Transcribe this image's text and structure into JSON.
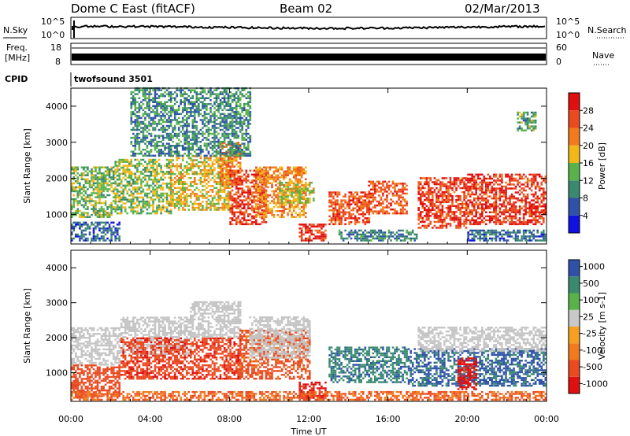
{
  "header": {
    "radar": "Dome C East (fitACF)",
    "beam": "Beam 02",
    "date": "02/Mar/2013",
    "cpid_label": "CPID",
    "cpid_value": "twofsound 3501"
  },
  "strips": {
    "nsky_label": "N.Sky",
    "nsearch_label": "N.Search",
    "nsky_ticks": [
      "10^5",
      "10^0"
    ],
    "nsearch_ticks": [
      "10^5",
      "10^0"
    ],
    "freq_label_1": "Freq.",
    "freq_label_2": "[MHz]",
    "freq_ticks": [
      "18",
      "8"
    ],
    "nave_label": "Nave",
    "nave_ticks": [
      "60",
      "0"
    ]
  },
  "colors": {
    "power": [
      "#1010e0",
      "#2f52a8",
      "#3a8a70",
      "#59b34a",
      "#f2b81a",
      "#f07a1e",
      "#ea4a20",
      "#e01010"
    ],
    "velocity": [
      "#e01010",
      "#ea4a20",
      "#f07a1e",
      "#f5a020",
      "#c8c8c8",
      "#59b34a",
      "#3a8a70",
      "#2f52a8"
    ],
    "ground_scatter": "#c4c4c4"
  },
  "chart_data": [
    {
      "type": "heatmap",
      "panel": "power",
      "ylabel": "Slant Range [km]",
      "xlabel": "",
      "x_ticks": [
        "00:00",
        "04:00",
        "08:00",
        "12:00",
        "16:00",
        "20:00",
        "00:00"
      ],
      "x_range_hours": [
        0,
        24
      ],
      "y_ticks": [
        1000,
        2000,
        3000,
        4000
      ],
      "ylim": [
        180,
        4500
      ],
      "colorbar_label": "Power [dB]",
      "colorbar_ticks": [
        "4",
        "8",
        "12",
        "16",
        "20",
        "24",
        "28"
      ],
      "colorbar_range": [
        0,
        32
      ],
      "scatter_regions": [
        {
          "t0": 0.0,
          "t1": 2.2,
          "r0": 900,
          "r1": 2300,
          "v": 14
        },
        {
          "t0": 0.0,
          "t1": 2.5,
          "r0": 250,
          "r1": 800,
          "v": 7
        },
        {
          "t0": 2.2,
          "t1": 5.0,
          "r0": 1000,
          "r1": 2500,
          "v": 15
        },
        {
          "t0": 5.0,
          "t1": 8.0,
          "r0": 1100,
          "r1": 2600,
          "v": 18
        },
        {
          "t0": 7.5,
          "t1": 8.5,
          "r0": 1800,
          "r1": 3000,
          "v": 22
        },
        {
          "t0": 8.0,
          "t1": 9.8,
          "r0": 700,
          "r1": 2200,
          "v": 27
        },
        {
          "t0": 9.3,
          "t1": 11.8,
          "r0": 900,
          "r1": 2300,
          "v": 21
        },
        {
          "t0": 10.5,
          "t1": 12.2,
          "r0": 1300,
          "r1": 1900,
          "v": 17
        },
        {
          "t0": 11.5,
          "t1": 12.8,
          "r0": 250,
          "r1": 700,
          "v": 28
        },
        {
          "t0": 13.0,
          "t1": 15.0,
          "r0": 700,
          "r1": 1600,
          "v": 26
        },
        {
          "t0": 15.0,
          "t1": 17.0,
          "r0": 1000,
          "r1": 1900,
          "v": 25
        },
        {
          "t0": 17.5,
          "t1": 20.0,
          "r0": 600,
          "r1": 2000,
          "v": 27
        },
        {
          "t0": 20.0,
          "t1": 24.0,
          "r0": 700,
          "r1": 2100,
          "v": 28
        },
        {
          "t0": 13.5,
          "t1": 17.5,
          "r0": 250,
          "r1": 550,
          "v": 9
        },
        {
          "t0": 20.0,
          "t1": 24.0,
          "r0": 250,
          "r1": 550,
          "v": 8
        },
        {
          "t0": 3.0,
          "t1": 9.0,
          "r0": 2600,
          "r1": 4500,
          "v": 10
        },
        {
          "t0": 22.5,
          "t1": 23.5,
          "r0": 3300,
          "r1": 3800,
          "v": 12
        }
      ]
    },
    {
      "type": "heatmap",
      "panel": "velocity",
      "ylabel": "Slant Range [km]",
      "xlabel": "Time UT",
      "x_ticks": [
        "00:00",
        "04:00",
        "08:00",
        "12:00",
        "16:00",
        "20:00",
        "00:00"
      ],
      "x_range_hours": [
        0,
        24
      ],
      "y_ticks": [
        1000,
        2000,
        3000,
        4000
      ],
      "ylim": [
        180,
        4500
      ],
      "colorbar_label": "Velocity [m s-1]",
      "colorbar_ticks": [
        "1000",
        "500",
        "100",
        "25",
        "-25",
        "-100",
        "-500",
        "-1000"
      ],
      "scatter_regions": [
        {
          "t0": 0.0,
          "t1": 2.5,
          "r0": 1200,
          "r1": 2300,
          "v": "ground"
        },
        {
          "t0": 0.0,
          "t1": 2.5,
          "r0": 300,
          "r1": 1200,
          "v": -300
        },
        {
          "t0": 2.5,
          "t1": 6.0,
          "r0": 1500,
          "r1": 2600,
          "v": "ground"
        },
        {
          "t0": 2.5,
          "t1": 8.5,
          "r0": 800,
          "r1": 2000,
          "v": -400
        },
        {
          "t0": 6.0,
          "t1": 8.5,
          "r0": 2000,
          "r1": 3000,
          "v": "ground"
        },
        {
          "t0": 8.5,
          "t1": 12.0,
          "r0": 800,
          "r1": 2200,
          "v": -150
        },
        {
          "t0": 9.0,
          "t1": 12.0,
          "r0": 1400,
          "r1": 2600,
          "v": "ground"
        },
        {
          "t0": 11.5,
          "t1": 12.8,
          "r0": 250,
          "r1": 700,
          "v": -700
        },
        {
          "t0": 13.0,
          "t1": 17.0,
          "r0": 700,
          "r1": 1700,
          "v": 400
        },
        {
          "t0": 17.0,
          "t1": 24.0,
          "r0": 600,
          "r1": 1700,
          "v": 600
        },
        {
          "t0": 17.5,
          "t1": 24.0,
          "r0": 1600,
          "r1": 2300,
          "v": "ground"
        },
        {
          "t0": 0.0,
          "t1": 24.0,
          "r0": 200,
          "r1": 450,
          "v": -100
        },
        {
          "t0": 19.5,
          "t1": 20.5,
          "r0": 500,
          "r1": 1400,
          "v": -800
        }
      ]
    }
  ]
}
